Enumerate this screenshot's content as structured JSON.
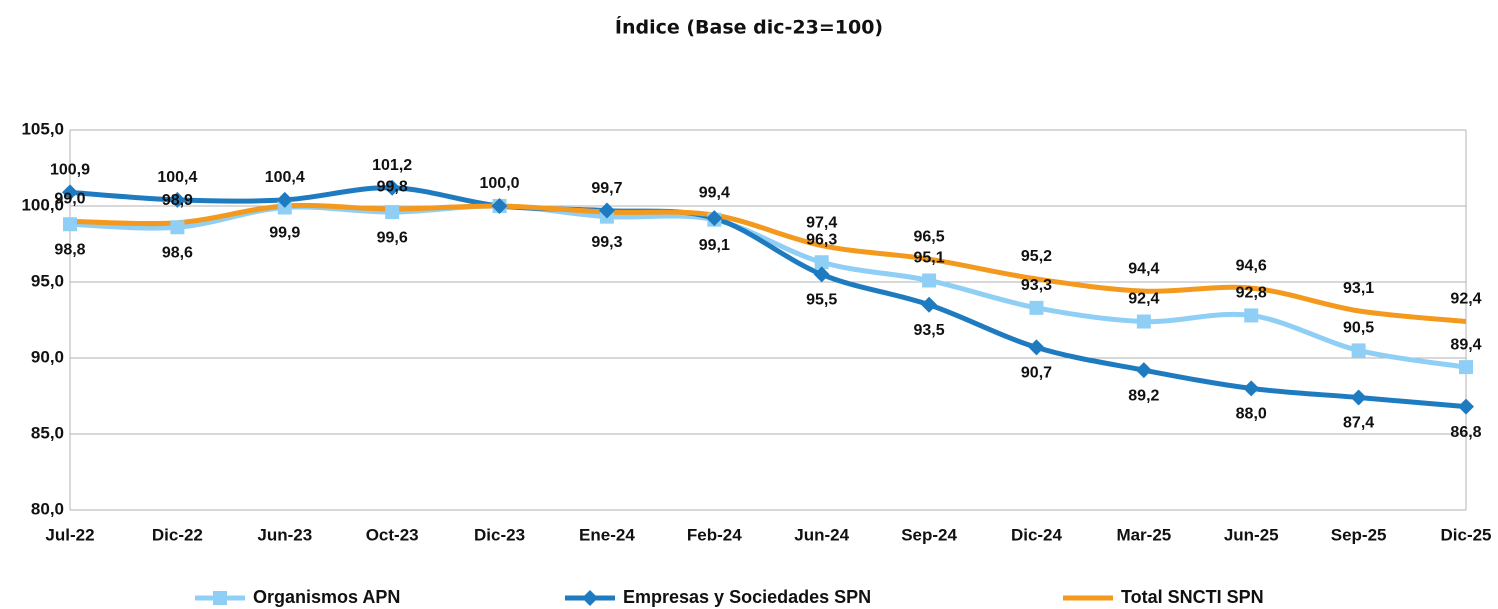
{
  "chart_data": {
    "type": "line",
    "title": "Índice (Base dic-23=100)",
    "categories": [
      "Jul-22",
      "Dic-22",
      "Jun-23",
      "Oct-23",
      "Dic-23",
      "Ene-24",
      "Feb-24",
      "Jun-24",
      "Sep-24",
      "Dic-24",
      "Mar-25",
      "Jun-25",
      "Sep-25",
      "Dic-25"
    ],
    "ylim": [
      80,
      105
    ],
    "yticks": [
      {
        "value": 80,
        "label": "80,0"
      },
      {
        "value": 85,
        "label": "85,0"
      },
      {
        "value": 90,
        "label": "90,0"
      },
      {
        "value": 95,
        "label": "95,0"
      },
      {
        "value": 100,
        "label": "100,0"
      },
      {
        "value": 105,
        "label": "105,0"
      }
    ],
    "grid": true,
    "legend": "bottom",
    "series": [
      {
        "name": "Organismos APN",
        "color": "#8fcff5",
        "marker": "square",
        "values": [
          98.8,
          98.6,
          99.9,
          99.6,
          100.0,
          99.3,
          99.1,
          96.3,
          95.1,
          93.3,
          92.4,
          92.8,
          90.5,
          89.4
        ],
        "value_labels": [
          "98,8",
          "98,6",
          "99,9",
          "99,6",
          null,
          "99,3",
          "99,1",
          "96,3",
          "95,1",
          "93,3",
          "92,4",
          "92,8",
          "90,5",
          "89,4"
        ]
      },
      {
        "name": "Empresas y Sociedades SPN",
        "color": "#1f7bc0",
        "marker": "diamond",
        "values": [
          100.9,
          100.4,
          100.4,
          101.2,
          100.0,
          99.7,
          99.2,
          95.5,
          93.5,
          90.7,
          89.2,
          88.0,
          87.4,
          86.8
        ],
        "value_labels": [
          "100,9",
          "100,4",
          "100,4",
          "101,2",
          null,
          "99,7",
          null,
          "95,5",
          "93,5",
          "90,7",
          "89,2",
          "88,0",
          "87,4",
          "86,8"
        ]
      },
      {
        "name": "Total SNCTI SPN",
        "color": "#f39a1e",
        "marker": "none",
        "values": [
          99.0,
          98.9,
          100.0,
          99.8,
          100.0,
          99.6,
          99.4,
          97.4,
          96.5,
          95.2,
          94.4,
          94.6,
          93.1,
          92.4
        ],
        "value_labels": [
          "99,0",
          "98,9",
          null,
          "99,8",
          "100,0",
          null,
          "99,4",
          "97,4",
          "96,5",
          "95,2",
          "94,4",
          "94,6",
          "93,1",
          "92,4"
        ]
      }
    ]
  }
}
